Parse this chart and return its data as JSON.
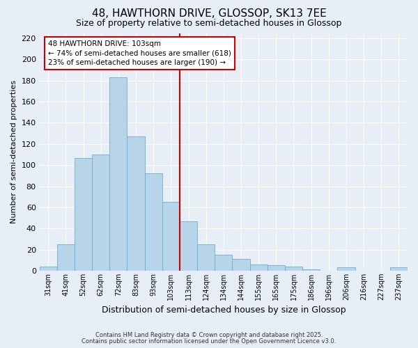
{
  "title": "48, HAWTHORN DRIVE, GLOSSOP, SK13 7EE",
  "subtitle": "Size of property relative to semi-detached houses in Glossop",
  "xlabel": "Distribution of semi-detached houses by size in Glossop",
  "ylabel": "Number of semi-detached properties",
  "bar_color": "#b8d4e8",
  "bar_edge_color": "#6aaed6",
  "background_color": "#e8eef5",
  "grid_color": "#ffffff",
  "vline_color": "#cc0000",
  "annotation_line1": "48 HAWTHORN DRIVE: 103sqm",
  "annotation_line2": "← 74% of semi-detached houses are smaller (618)",
  "annotation_line3": "23% of semi-detached houses are larger (190) →",
  "annotation_box_color": "#cc0000",
  "bin_labels": [
    "31sqm",
    "41sqm",
    "52sqm",
    "62sqm",
    "72sqm",
    "83sqm",
    "93sqm",
    "103sqm",
    "113sqm",
    "124sqm",
    "134sqm",
    "144sqm",
    "155sqm",
    "165sqm",
    "175sqm",
    "186sqm",
    "196sqm",
    "206sqm",
    "216sqm",
    "227sqm",
    "237sqm"
  ],
  "counts": [
    4,
    25,
    107,
    110,
    183,
    127,
    92,
    65,
    47,
    25,
    15,
    11,
    6,
    5,
    4,
    1,
    0,
    3,
    0,
    0,
    3
  ],
  "vline_bar_index": 7,
  "ylim": [
    0,
    225
  ],
  "yticks": [
    0,
    20,
    40,
    60,
    80,
    100,
    120,
    140,
    160,
    180,
    200,
    220
  ],
  "footnote1": "Contains HM Land Registry data © Crown copyright and database right 2025.",
  "footnote2": "Contains public sector information licensed under the Open Government Licence v3.0."
}
